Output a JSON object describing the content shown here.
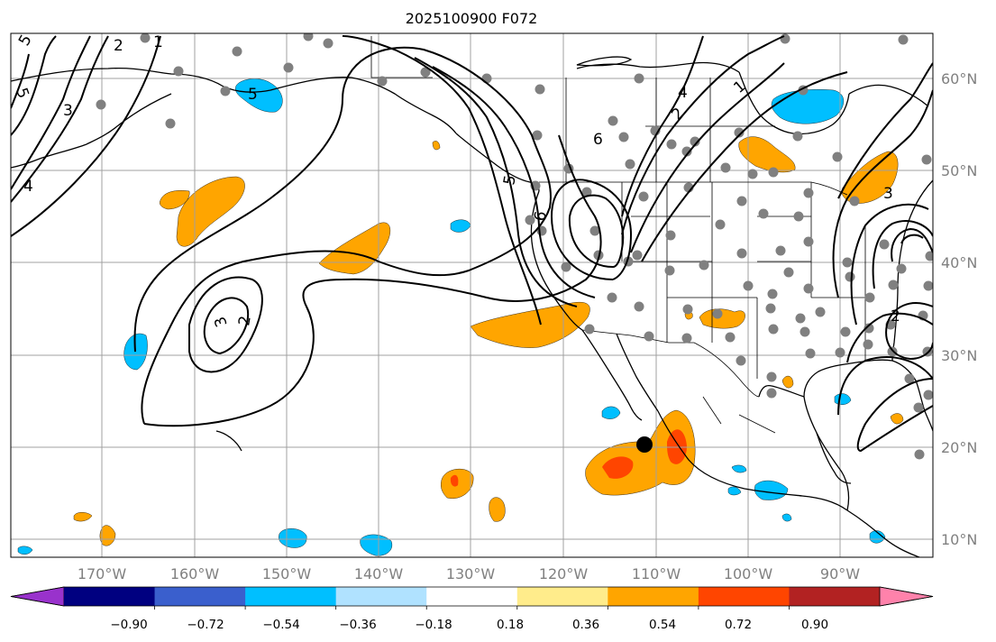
{
  "title": "2025100900 F072",
  "lat_labels": [
    "60°N",
    "50°N",
    "40°N",
    "30°N",
    "20°N",
    "10°N"
  ],
  "lon_labels": [
    "170°W",
    "160°W",
    "150°W",
    "140°W",
    "130°W",
    "120°W",
    "110°W",
    "100°W",
    "90°W"
  ],
  "contour_labels": [
    "5",
    "2",
    "1",
    "5",
    "3",
    "4",
    "2",
    "3",
    "2",
    "6",
    "4",
    "1",
    "2",
    "5",
    "6",
    "5",
    "3"
  ],
  "colorbar": {
    "ticks": [
      "−0.90",
      "−0.72",
      "−0.54",
      "−0.36",
      "−0.18",
      "0.18",
      "0.36",
      "0.54",
      "0.72",
      "0.90"
    ],
    "colors": [
      "#9932cc",
      "#000080",
      "#3a5fcd",
      "#00bfff",
      "#b0e2ff",
      "#ffffff",
      "#ffec8b",
      "#ffa500",
      "#ff4500",
      "#b22222",
      "#ff82ab"
    ]
  },
  "marker": {
    "label": "storm-center",
    "lon": -111,
    "lat": 20
  },
  "colors": {
    "positive_fill": "#ffa500",
    "strong_positive_fill": "#ff4500",
    "negative_fill": "#00bfff",
    "station_dot": "#808080",
    "contour": "#000000",
    "gridline": "#a0a0a0"
  }
}
